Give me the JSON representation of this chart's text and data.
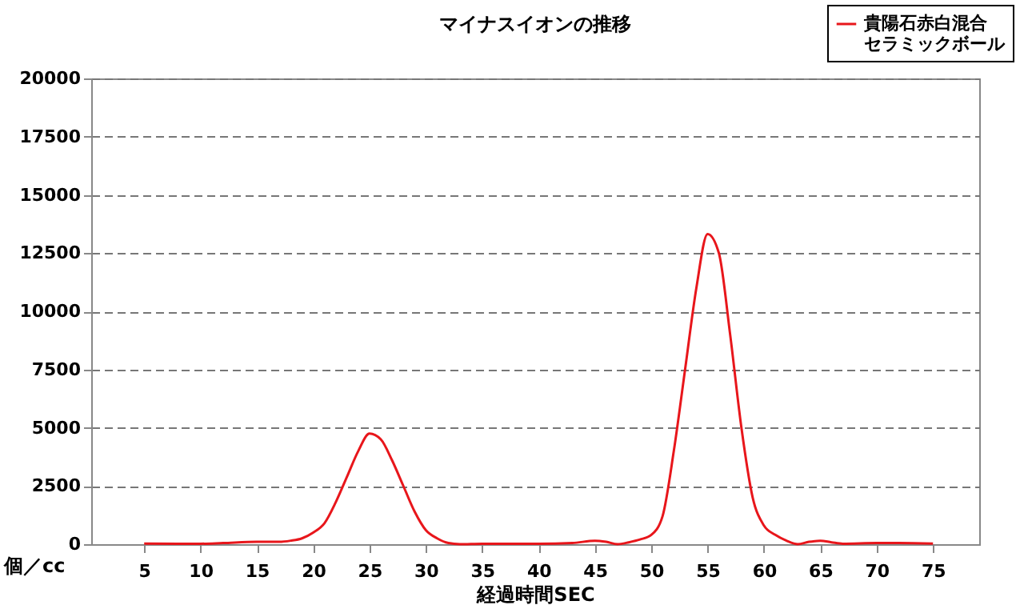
{
  "chart_data": {
    "type": "line",
    "title": "マイナスイオンの推移",
    "xlabel": "経過時間SEC",
    "ylabel": "個／cc",
    "x": [
      5,
      8,
      10,
      12,
      15,
      17,
      18,
      19,
      20,
      21,
      22,
      23,
      24,
      25,
      26,
      27,
      28,
      29,
      30,
      31,
      32,
      33,
      35,
      40,
      43,
      45,
      46,
      47,
      48,
      49,
      50,
      51,
      52,
      53,
      54,
      55,
      56,
      57,
      58,
      59,
      60,
      61,
      62,
      63,
      64,
      65,
      66,
      67,
      70,
      72,
      75
    ],
    "series": [
      {
        "name": "貴陽石赤白混合セラミックボール",
        "color": "#e8161b",
        "values": [
          30,
          20,
          20,
          50,
          100,
          100,
          150,
          250,
          500,
          900,
          1800,
          2900,
          4000,
          4750,
          4500,
          3600,
          2500,
          1400,
          600,
          250,
          50,
          0,
          20,
          20,
          50,
          150,
          100,
          0,
          80,
          200,
          400,
          1200,
          4000,
          7500,
          11000,
          13320,
          12500,
          9000,
          5000,
          2000,
          800,
          400,
          150,
          0,
          100,
          150,
          80,
          20,
          50,
          50,
          30
        ]
      }
    ],
    "xlim": [
      0.3,
      79.1
    ],
    "xticks": [
      5,
      10,
      15,
      20,
      25,
      30,
      35,
      40,
      45,
      50,
      55,
      60,
      65,
      70,
      75
    ],
    "ylim": [
      0,
      20000
    ],
    "yticks": [
      0,
      2500,
      5000,
      7500,
      10000,
      12500,
      15000,
      17500,
      20000
    ],
    "grid": "y",
    "legend": "top right",
    "marker": "none",
    "line_style": "solid"
  }
}
